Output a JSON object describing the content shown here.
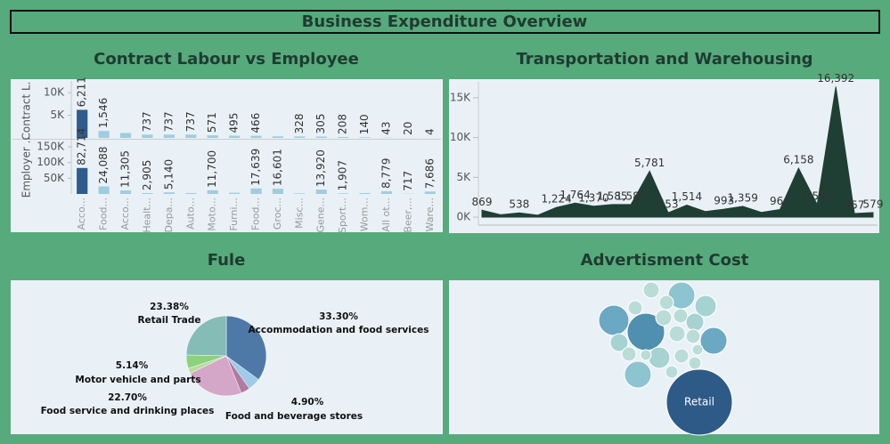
{
  "title": "Business Expenditure Overview",
  "chart_data": [
    {
      "type": "bar",
      "title": "Contract Labour vs Employee",
      "categories": [
        "Acco...",
        "Food...",
        "Acco...",
        "Healt...",
        "Depa...",
        "Auto...",
        "Moto...",
        "Furni...",
        "Food...",
        "Groc...",
        "Misc...",
        "Gene...",
        "Sport...",
        "Wom...",
        "All ot...",
        "Beer,...",
        "Ware..."
      ],
      "series": [
        {
          "name": "Contract L.",
          "color": "#9fcde0",
          "highlight_color": "#2e5c8c",
          "values": [
            6211,
            1546,
            1100,
            737,
            737,
            737,
            571,
            495,
            466,
            350,
            328,
            305,
            208,
            140,
            43,
            20,
            4
          ],
          "value_labels": [
            "6,211",
            "1,546",
            null,
            "737",
            "737",
            "737",
            "571",
            "495",
            "466",
            null,
            "328",
            "305",
            "208",
            "140",
            "43",
            "20",
            "4"
          ],
          "ylim": [
            0,
            12000
          ],
          "yticks": [
            {
              "value": 5000,
              "label": "5K"
            },
            {
              "value": 10000,
              "label": "10K"
            }
          ]
        },
        {
          "name": "Employer ..",
          "color": "#9fcde0",
          "highlight_color": "#2e5c8c",
          "values": [
            82714,
            24088,
            11305,
            2905,
            5140,
            3000,
            11700,
            4000,
            17639,
            16601,
            2000,
            13920,
            1907,
            3000,
            8779,
            717,
            7686
          ],
          "value_labels": [
            "82,714",
            "24,088",
            "11,305",
            "2,905",
            "5,140",
            null,
            "11,700",
            null,
            "17,639",
            "16,601",
            null,
            "13,920",
            "1,907",
            null,
            "8,779",
            "717",
            "7,686"
          ],
          "ylim": [
            0,
            170000
          ],
          "yticks": [
            {
              "value": 50000,
              "label": "50K"
            },
            {
              "value": 100000,
              "label": "100K"
            },
            {
              "value": 150000,
              "label": "150K"
            }
          ]
        }
      ]
    },
    {
      "type": "area",
      "title": "Transportation and Warehousing",
      "color": "#1f3f34",
      "values": [
        869,
        300,
        538,
        250,
        1224,
        1764,
        1370,
        1585,
        1585,
        5781,
        553,
        1514,
        700,
        993,
        1359,
        600,
        964,
        6158,
        1585,
        16392,
        457,
        579
      ],
      "value_labels": [
        "869",
        null,
        "538",
        null,
        "1,224",
        "1,764",
        "1,370",
        "1,585",
        "1,585",
        "5,781",
        "553",
        "1,514",
        null,
        "993",
        "1,359",
        null,
        "964",
        "6,158",
        "1,585",
        "16,392",
        "457",
        "579"
      ],
      "ylim": [
        -1000,
        17000
      ],
      "yticks": [
        {
          "value": 0,
          "label": "0K"
        },
        {
          "value": 5000,
          "label": "5K"
        },
        {
          "value": 10000,
          "label": "10K"
        },
        {
          "value": 15000,
          "label": "15K"
        }
      ]
    },
    {
      "type": "pie",
      "title": "Fule",
      "categories": [
        "Accommodation and food services",
        "Food and beverage stores",
        null,
        "Food service and drinking places",
        null,
        "Motor vehicle and parts",
        "Retail Trade"
      ],
      "values": [
        33.3,
        4.9,
        3.5,
        22.7,
        2.0,
        5.14,
        23.38
      ],
      "value_labels": [
        "33.30%",
        "4.90%",
        null,
        "22.70%",
        null,
        "5.14%",
        "23.38%"
      ],
      "colors": [
        "#4e79a7",
        "#a0cbe8",
        "#b07aa1",
        "#d4a6c8",
        "#b6dc9c",
        "#8cd17d",
        "#86bcb6"
      ]
    },
    {
      "type": "bubble",
      "title": "Advertisment Cost",
      "categories": [
        "Retail",
        null,
        null,
        null,
        null,
        null,
        null,
        null,
        null,
        null,
        null,
        null,
        null,
        null,
        null,
        null,
        null,
        null,
        null,
        null,
        null,
        null,
        null
      ],
      "values": [
        1369,
        441,
        289,
        225,
        225,
        225,
        81,
        64,
        64,
        144,
        81,
        64,
        100,
        100,
        81,
        64,
        64,
        144,
        64,
        49,
        36,
        49,
        36
      ],
      "colors": [
        "#2e5a87",
        "#4f90b0",
        "#6aa8c4",
        "#6aa8c4",
        "#8cc4cf",
        "#8cc4cf",
        "#b9ddd6",
        "#b9ddd6",
        "#b9ddd6",
        "#a6d2d2",
        "#b9ddd6",
        "#b9ddd6",
        "#a6d2d2",
        "#a6d2d2",
        "#b9ddd6",
        "#b9ddd6",
        "#b9ddd6",
        "#a6d2d2",
        "#b9ddd6",
        "#b9ddd6",
        "#b9ddd6",
        "#b9ddd6",
        "#b9ddd6"
      ]
    }
  ]
}
